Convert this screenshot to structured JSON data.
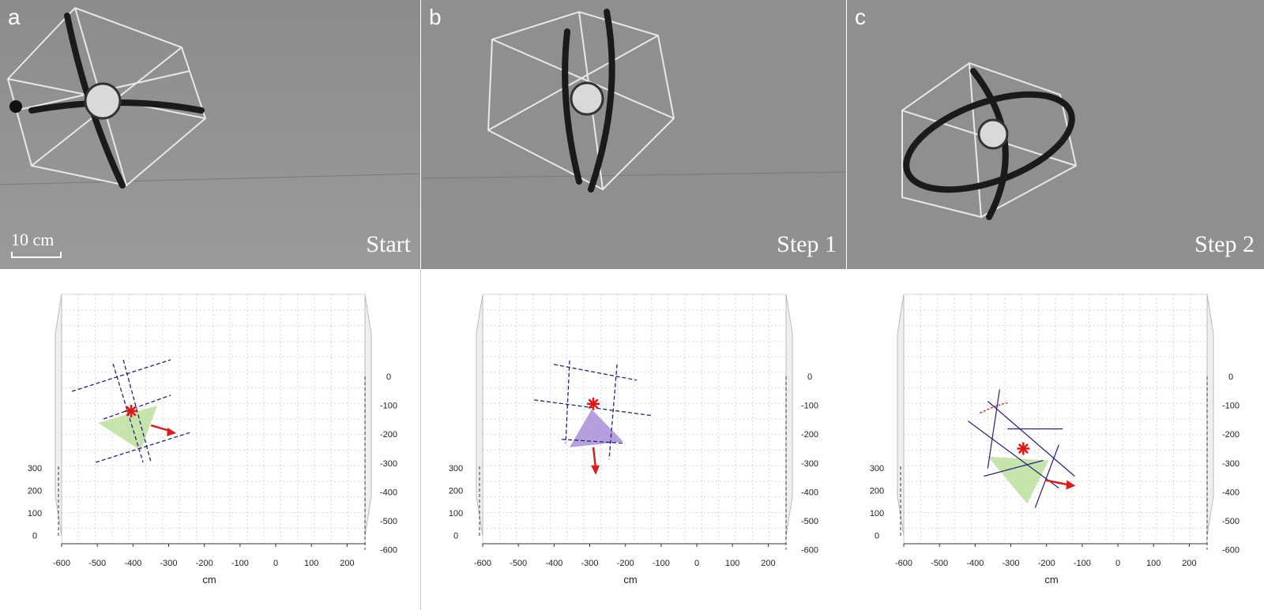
{
  "figure": {
    "panels": [
      {
        "letter": "a",
        "step_label": "Start",
        "scale_label": "10 cm",
        "triangle_color": "#b9dd98"
      },
      {
        "letter": "b",
        "step_label": "Step 1",
        "scale_label": "",
        "triangle_color": "#a88ed6"
      },
      {
        "letter": "c",
        "step_label": "Step 2",
        "scale_label": "",
        "triangle_color": "#b9dd98"
      }
    ]
  },
  "chart_data": [
    {
      "type": "scatter",
      "xlabel": "cm",
      "x_ticks": [
        "-600",
        "-500",
        "-400",
        "-300",
        "-200",
        "-100",
        "0",
        "100",
        "200"
      ],
      "y_ticks": [
        "0",
        "-100",
        "-200",
        "-300",
        "-400",
        "-500",
        "-600"
      ],
      "z_ticks": [
        "300",
        "200",
        "100",
        "0"
      ],
      "points": [
        {
          "name": "center-of-mass",
          "x": -405,
          "y": -120
        }
      ],
      "arrow_direction": "right",
      "grid": true
    },
    {
      "type": "scatter",
      "xlabel": "cm",
      "x_ticks": [
        "-600",
        "-500",
        "-400",
        "-300",
        "-200",
        "-100",
        "0",
        "100",
        "200"
      ],
      "y_ticks": [
        "0",
        "-100",
        "-200",
        "-300",
        "-400",
        "-500",
        "-600"
      ],
      "z_ticks": [
        "300",
        "200",
        "100",
        "0"
      ],
      "points": [
        {
          "name": "center-of-mass",
          "x": -290,
          "y": -95
        }
      ],
      "arrow_direction": "down",
      "grid": true
    },
    {
      "type": "scatter",
      "xlabel": "cm",
      "x_ticks": [
        "-600",
        "-500",
        "-400",
        "-300",
        "-200",
        "-100",
        "0",
        "100",
        "200"
      ],
      "y_ticks": [
        "0",
        "-100",
        "-200",
        "-300",
        "-400",
        "-500",
        "-600"
      ],
      "z_ticks": [
        "300",
        "200",
        "100",
        "0"
      ],
      "points": [
        {
          "name": "center-of-mass",
          "x": -265,
          "y": -250
        }
      ],
      "arrow_direction": "right",
      "grid": true
    }
  ]
}
